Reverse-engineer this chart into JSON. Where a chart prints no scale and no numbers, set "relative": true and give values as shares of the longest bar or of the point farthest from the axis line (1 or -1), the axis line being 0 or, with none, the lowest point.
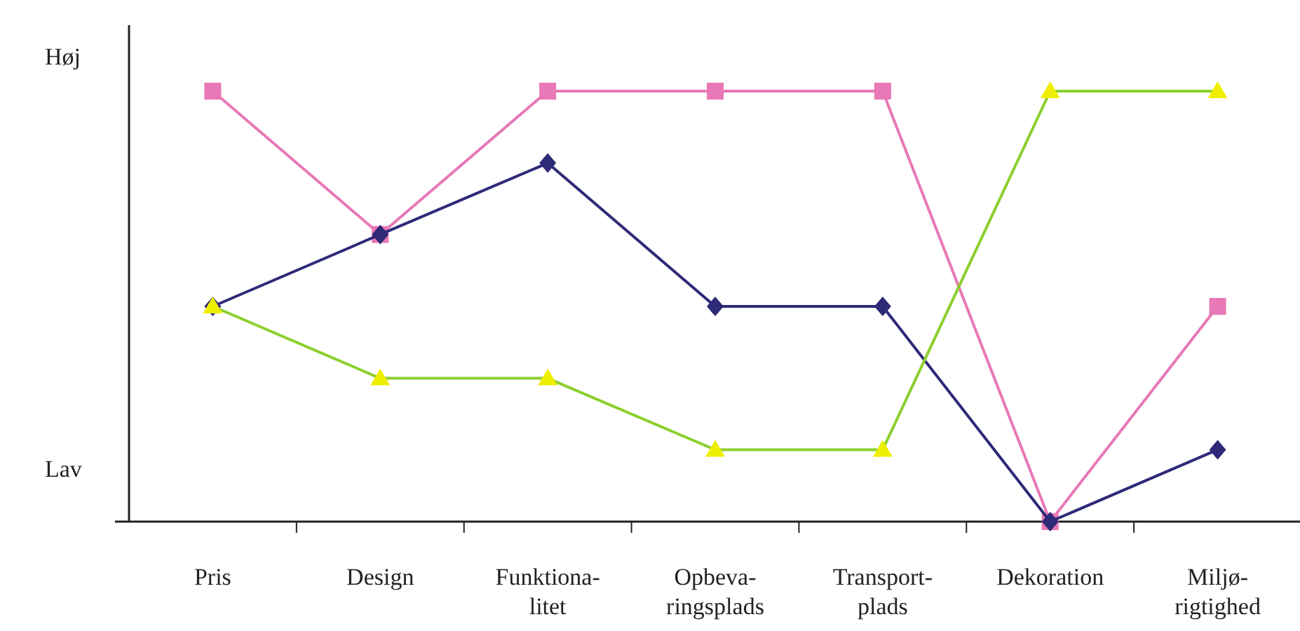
{
  "chart_data": {
    "type": "line",
    "relative": true,
    "categories": [
      "Pris",
      "Design",
      "Funktiona-\nlitet",
      "Opbeva-\nringsplads",
      "Transport-\nplads",
      "Dekoration",
      "Miljø-\nrigtighed"
    ],
    "annotations": [
      "Høj",
      "Lav"
    ],
    "series": [
      {
        "color": "#e878b6",
        "marker": "square",
        "values": [
          1,
          0.667,
          1,
          1,
          1,
          0,
          0.5
        ]
      },
      {
        "color": "#2e2a78",
        "marker": "diamond",
        "values": [
          0.5,
          0.667,
          0.833,
          0.5,
          0.5,
          0,
          0.167
        ]
      },
      {
        "color": "#8ccf2e",
        "colors": [
          "#eeee00",
          "#eeee00",
          "#eeee00",
          "#eeee00",
          "#eeee00",
          "#eeee00",
          "#eeee00"
        ],
        "marker": "triangle",
        "values": [
          0.5,
          0.333,
          0.333,
          0.167,
          0.167,
          1,
          1
        ]
      }
    ]
  }
}
